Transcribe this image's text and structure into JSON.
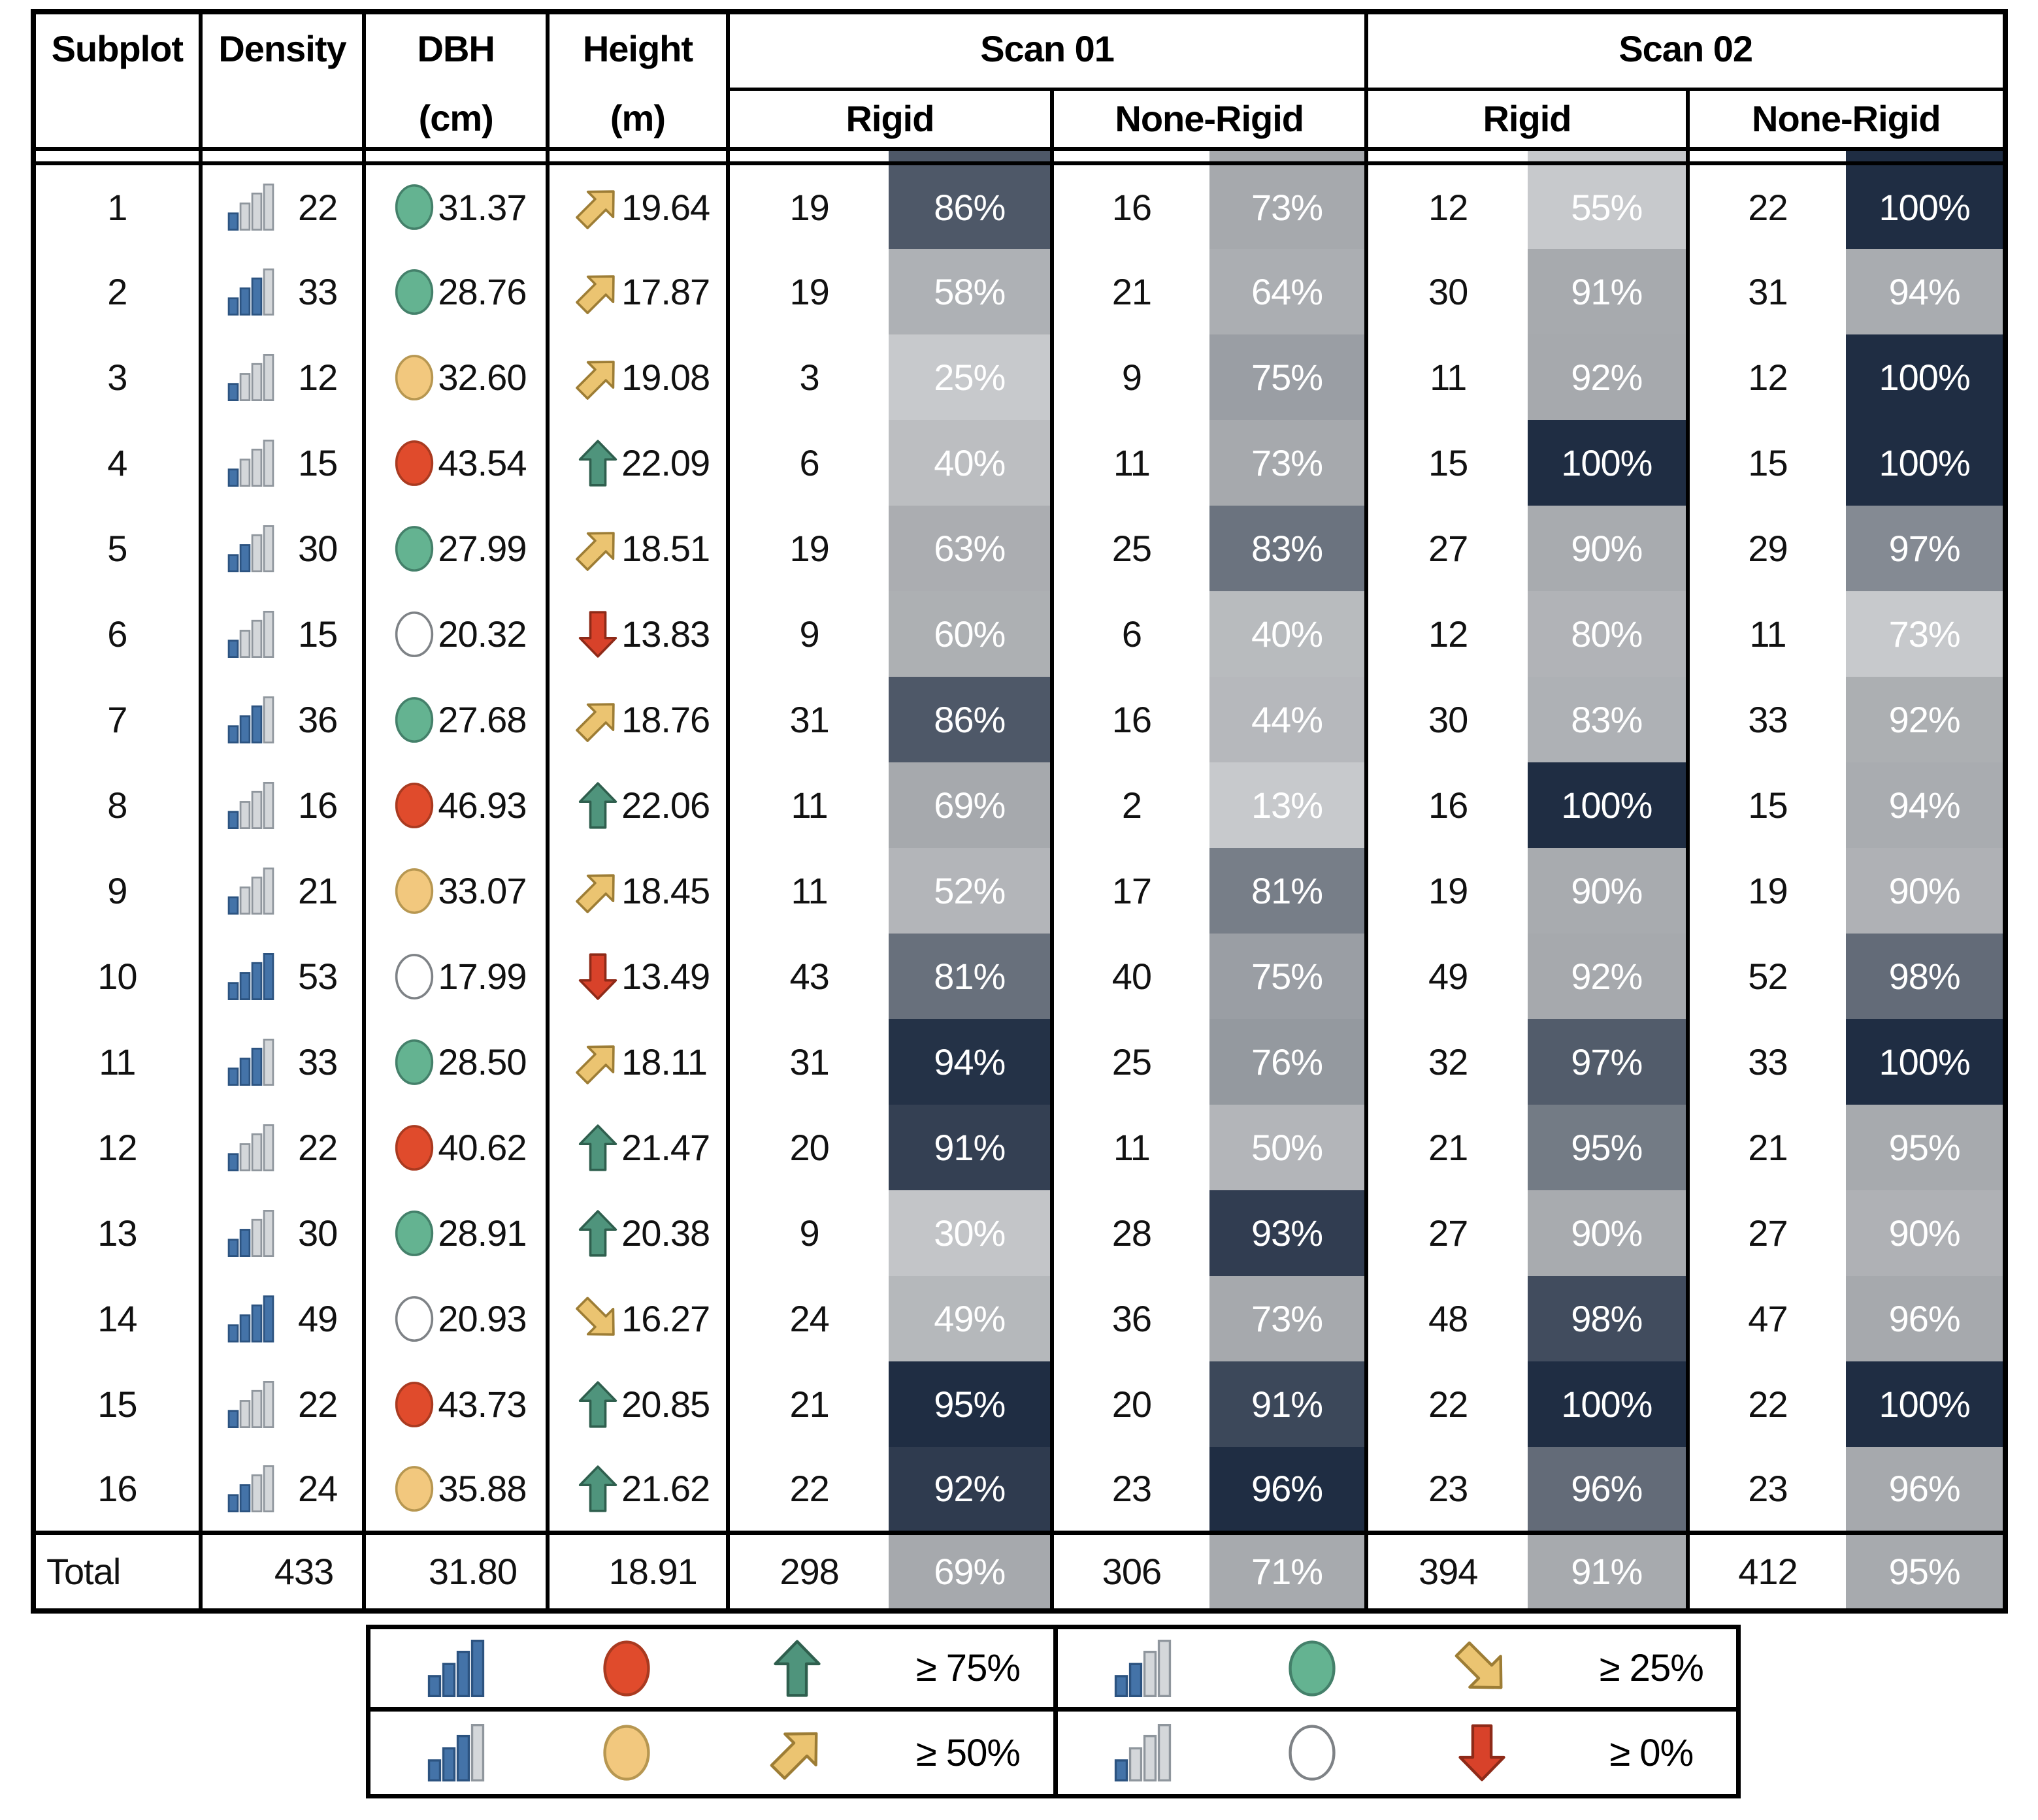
{
  "header": {
    "subplot": "Subplot",
    "density": "Density",
    "dbh": "DBH",
    "dbh_unit": "(cm)",
    "height": "Height",
    "height_unit": "(m)",
    "scan01": "Scan 01",
    "scan02": "Scan 02",
    "rigid": "Rigid",
    "none_rigid": "None-Rigid"
  },
  "rows": [
    {
      "subplot": "1",
      "density": "22",
      "density_bars": 1,
      "dbh": "31.37",
      "dbh_level": "green",
      "height": "19.64",
      "height_dir": "upright",
      "s1_rigid_n": "19",
      "s1_rigid_pct": "86%",
      "s1_nr_n": "16",
      "s1_nr_pct": "73%",
      "s2_rigid_n": "12",
      "s2_rigid_pct": "55%",
      "s2_nr_n": "22",
      "s2_nr_pct": "100%"
    },
    {
      "subplot": "2",
      "density": "33",
      "density_bars": 3,
      "dbh": "28.76",
      "dbh_level": "green",
      "height": "17.87",
      "height_dir": "upright",
      "s1_rigid_n": "19",
      "s1_rigid_pct": "58%",
      "s1_nr_n": "21",
      "s1_nr_pct": "64%",
      "s2_rigid_n": "30",
      "s2_rigid_pct": "91%",
      "s2_nr_n": "31",
      "s2_nr_pct": "94%"
    },
    {
      "subplot": "3",
      "density": "12",
      "density_bars": 1,
      "dbh": "32.60",
      "dbh_level": "yellow",
      "height": "19.08",
      "height_dir": "upright",
      "s1_rigid_n": "3",
      "s1_rigid_pct": "25%",
      "s1_nr_n": "9",
      "s1_nr_pct": "75%",
      "s2_rigid_n": "11",
      "s2_rigid_pct": "92%",
      "s2_nr_n": "12",
      "s2_nr_pct": "100%"
    },
    {
      "subplot": "4",
      "density": "15",
      "density_bars": 1,
      "dbh": "43.54",
      "dbh_level": "red",
      "height": "22.09",
      "height_dir": "up",
      "s1_rigid_n": "6",
      "s1_rigid_pct": "40%",
      "s1_nr_n": "11",
      "s1_nr_pct": "73%",
      "s2_rigid_n": "15",
      "s2_rigid_pct": "100%",
      "s2_nr_n": "15",
      "s2_nr_pct": "100%"
    },
    {
      "subplot": "5",
      "density": "30",
      "density_bars": 2,
      "dbh": "27.99",
      "dbh_level": "green",
      "height": "18.51",
      "height_dir": "upright",
      "s1_rigid_n": "19",
      "s1_rigid_pct": "63%",
      "s1_nr_n": "25",
      "s1_nr_pct": "83%",
      "s2_rigid_n": "27",
      "s2_rigid_pct": "90%",
      "s2_nr_n": "29",
      "s2_nr_pct": "97%"
    },
    {
      "subplot": "6",
      "density": "15",
      "density_bars": 1,
      "dbh": "20.32",
      "dbh_level": "white",
      "height": "13.83",
      "height_dir": "down",
      "s1_rigid_n": "9",
      "s1_rigid_pct": "60%",
      "s1_nr_n": "6",
      "s1_nr_pct": "40%",
      "s2_rigid_n": "12",
      "s2_rigid_pct": "80%",
      "s2_nr_n": "11",
      "s2_nr_pct": "73%"
    },
    {
      "subplot": "7",
      "density": "36",
      "density_bars": 3,
      "dbh": "27.68",
      "dbh_level": "green",
      "height": "18.76",
      "height_dir": "upright",
      "s1_rigid_n": "31",
      "s1_rigid_pct": "86%",
      "s1_nr_n": "16",
      "s1_nr_pct": "44%",
      "s2_rigid_n": "30",
      "s2_rigid_pct": "83%",
      "s2_nr_n": "33",
      "s2_nr_pct": "92%"
    },
    {
      "subplot": "8",
      "density": "16",
      "density_bars": 1,
      "dbh": "46.93",
      "dbh_level": "red",
      "height": "22.06",
      "height_dir": "up",
      "s1_rigid_n": "11",
      "s1_rigid_pct": "69%",
      "s1_nr_n": "2",
      "s1_nr_pct": "13%",
      "s2_rigid_n": "16",
      "s2_rigid_pct": "100%",
      "s2_nr_n": "15",
      "s2_nr_pct": "94%"
    },
    {
      "subplot": "9",
      "density": "21",
      "density_bars": 1,
      "dbh": "33.07",
      "dbh_level": "yellow",
      "height": "18.45",
      "height_dir": "upright",
      "s1_rigid_n": "11",
      "s1_rigid_pct": "52%",
      "s1_nr_n": "17",
      "s1_nr_pct": "81%",
      "s2_rigid_n": "19",
      "s2_rigid_pct": "90%",
      "s2_nr_n": "19",
      "s2_nr_pct": "90%"
    },
    {
      "subplot": "10",
      "density": "53",
      "density_bars": 4,
      "dbh": "17.99",
      "dbh_level": "white",
      "height": "13.49",
      "height_dir": "down",
      "s1_rigid_n": "43",
      "s1_rigid_pct": "81%",
      "s1_nr_n": "40",
      "s1_nr_pct": "75%",
      "s2_rigid_n": "49",
      "s2_rigid_pct": "92%",
      "s2_nr_n": "52",
      "s2_nr_pct": "98%"
    },
    {
      "subplot": "11",
      "density": "33",
      "density_bars": 3,
      "dbh": "28.50",
      "dbh_level": "green",
      "height": "18.11",
      "height_dir": "upright",
      "s1_rigid_n": "31",
      "s1_rigid_pct": "94%",
      "s1_nr_n": "25",
      "s1_nr_pct": "76%",
      "s2_rigid_n": "32",
      "s2_rigid_pct": "97%",
      "s2_nr_n": "33",
      "s2_nr_pct": "100%"
    },
    {
      "subplot": "12",
      "density": "22",
      "density_bars": 1,
      "dbh": "40.62",
      "dbh_level": "red",
      "height": "21.47",
      "height_dir": "up",
      "s1_rigid_n": "20",
      "s1_rigid_pct": "91%",
      "s1_nr_n": "11",
      "s1_nr_pct": "50%",
      "s2_rigid_n": "21",
      "s2_rigid_pct": "95%",
      "s2_nr_n": "21",
      "s2_nr_pct": "95%"
    },
    {
      "subplot": "13",
      "density": "30",
      "density_bars": 2,
      "dbh": "28.91",
      "dbh_level": "green",
      "height": "20.38",
      "height_dir": "up",
      "s1_rigid_n": "9",
      "s1_rigid_pct": "30%",
      "s1_nr_n": "28",
      "s1_nr_pct": "93%",
      "s2_rigid_n": "27",
      "s2_rigid_pct": "90%",
      "s2_nr_n": "27",
      "s2_nr_pct": "90%"
    },
    {
      "subplot": "14",
      "density": "49",
      "density_bars": 4,
      "dbh": "20.93",
      "dbh_level": "white",
      "height": "16.27",
      "height_dir": "downright",
      "s1_rigid_n": "24",
      "s1_rigid_pct": "49%",
      "s1_nr_n": "36",
      "s1_nr_pct": "73%",
      "s2_rigid_n": "48",
      "s2_rigid_pct": "98%",
      "s2_nr_n": "47",
      "s2_nr_pct": "96%"
    },
    {
      "subplot": "15",
      "density": "22",
      "density_bars": 1,
      "dbh": "43.73",
      "dbh_level": "red",
      "height": "20.85",
      "height_dir": "up",
      "s1_rigid_n": "21",
      "s1_rigid_pct": "95%",
      "s1_nr_n": "20",
      "s1_nr_pct": "91%",
      "s2_rigid_n": "22",
      "s2_rigid_pct": "100%",
      "s2_nr_n": "22",
      "s2_nr_pct": "100%"
    },
    {
      "subplot": "16",
      "density": "24",
      "density_bars": 2,
      "dbh": "35.88",
      "dbh_level": "yellow",
      "height": "21.62",
      "height_dir": "up",
      "s1_rigid_n": "22",
      "s1_rigid_pct": "92%",
      "s1_nr_n": "23",
      "s1_nr_pct": "96%",
      "s2_rigid_n": "23",
      "s2_rigid_pct": "96%",
      "s2_nr_n": "23",
      "s2_nr_pct": "96%"
    }
  ],
  "total": {
    "label": "Total",
    "density": "433",
    "dbh": "31.80",
    "height": "18.91",
    "s1_rigid_n": "298",
    "s1_rigid_pct": "69%",
    "s1_nr_n": "306",
    "s1_nr_pct": "71%",
    "s2_rigid_n": "394",
    "s2_rigid_pct": "91%",
    "s2_nr_n": "412",
    "s2_nr_pct": "95%"
  },
  "legend": {
    "cells": [
      {
        "bars": 4,
        "circle": "red",
        "arrow": "up",
        "label": "≥ 75%"
      },
      {
        "bars": 2,
        "circle": "green",
        "arrow": "downright",
        "label": "≥ 25%"
      },
      {
        "bars": 3,
        "circle": "yellow",
        "arrow": "upright",
        "label": "≥ 50%"
      },
      {
        "bars": 1,
        "circle": "white",
        "arrow": "down",
        "label": "≥ 0%"
      }
    ]
  },
  "colors": {
    "scale_min": "#c7c9cc",
    "scale_mid": "#a6a9ad",
    "scale_max": "#1f2d43",
    "pct_text": "#ffffff",
    "bar_filled": "#4473a8",
    "bar_filled_stroke": "#2c5380",
    "bar_empty": "#d4d7da",
    "bar_empty_stroke": "#8f969d",
    "circle_red": "#e04b2c",
    "circle_red_stroke": "#a93a20",
    "circle_yellow": "#f2c87e",
    "circle_yellow_stroke": "#b79751",
    "circle_green": "#64b391",
    "circle_green_stroke": "#44806a",
    "circle_white": "#ffffff",
    "circle_white_stroke": "#7e8286",
    "arrow_green": "#4f947c",
    "arrow_green_stroke": "#2f5f4e",
    "arrow_yellow": "#ebc471",
    "arrow_yellow_stroke": "#9d7d35",
    "arrow_red": "#d8422a",
    "arrow_red_stroke": "#8e2a18"
  }
}
